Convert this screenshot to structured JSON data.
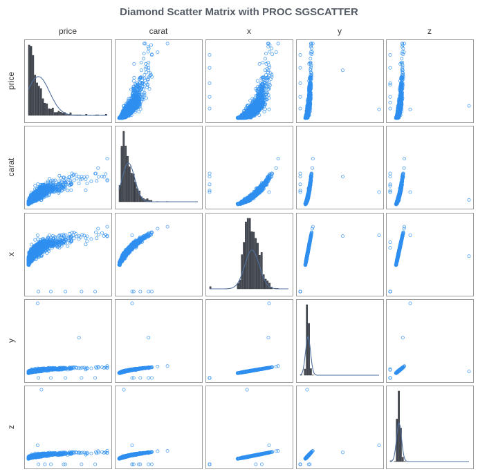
{
  "chart_data": {
    "type": "scatter_matrix",
    "title": "Diamond Scatter Matrix with PROC SGSCATTER",
    "variables": [
      "price",
      "carat",
      "x",
      "y",
      "z"
    ],
    "ranges": {
      "price": [
        326,
        18823
      ],
      "carat": [
        0.2,
        5.01
      ],
      "x": [
        0,
        10.74
      ],
      "y": [
        0,
        58.9
      ],
      "z": [
        0,
        31.8
      ]
    },
    "diagonal": "histogram with normal density curve",
    "marker": "open circle",
    "grid": false,
    "legend": "none",
    "colors": {
      "marker": "#2f8ff0",
      "histogram_fill": "#4a4f58",
      "histogram_edge": "#2a2e35",
      "density_curve": "#4f6f9e",
      "panel_border": "#9a9a9a",
      "title": "#555c66"
    }
  }
}
